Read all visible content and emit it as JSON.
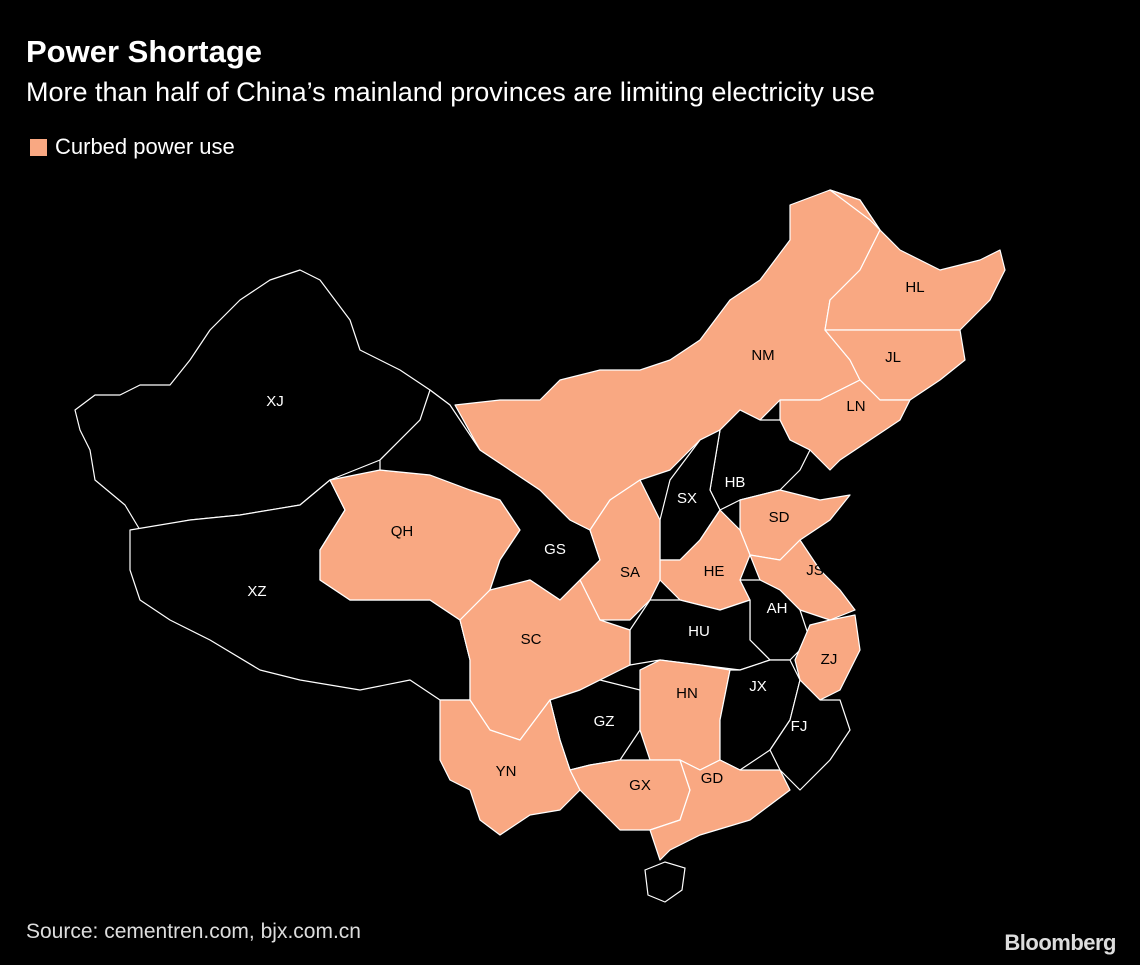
{
  "title": "Power Shortage",
  "subtitle": "More than half of China’s mainland provinces are limiting electricity use",
  "legend": {
    "label": "Curbed power use",
    "color": "#f9a882"
  },
  "map": {
    "other_color": "#000000",
    "border_color": "#ffffff",
    "provinces": [
      {
        "label": "XJ",
        "curbed": false
      },
      {
        "label": "XZ",
        "curbed": false
      },
      {
        "label": "QH",
        "curbed": true
      },
      {
        "label": "GS",
        "curbed": false
      },
      {
        "label": "NM",
        "curbed": true
      },
      {
        "label": "HL",
        "curbed": true
      },
      {
        "label": "JL",
        "curbed": true
      },
      {
        "label": "LN",
        "curbed": true
      },
      {
        "label": "HB",
        "curbed": false
      },
      {
        "label": "SX",
        "curbed": false
      },
      {
        "label": "SD",
        "curbed": true
      },
      {
        "label": "HE",
        "curbed": true
      },
      {
        "label": "SA",
        "curbed": true
      },
      {
        "label": "JS",
        "curbed": true
      },
      {
        "label": "AH",
        "curbed": false
      },
      {
        "label": "ZJ",
        "curbed": true
      },
      {
        "label": "HU",
        "curbed": false
      },
      {
        "label": "SC",
        "curbed": true
      },
      {
        "label": "GZ",
        "curbed": false
      },
      {
        "label": "HN",
        "curbed": true
      },
      {
        "label": "JX",
        "curbed": false
      },
      {
        "label": "FJ",
        "curbed": false
      },
      {
        "label": "YN",
        "curbed": true
      },
      {
        "label": "GX",
        "curbed": true
      },
      {
        "label": "GD",
        "curbed": true
      }
    ]
  },
  "source": "Source: cementren.com, bjx.com.cn",
  "brand": "Bloomberg"
}
